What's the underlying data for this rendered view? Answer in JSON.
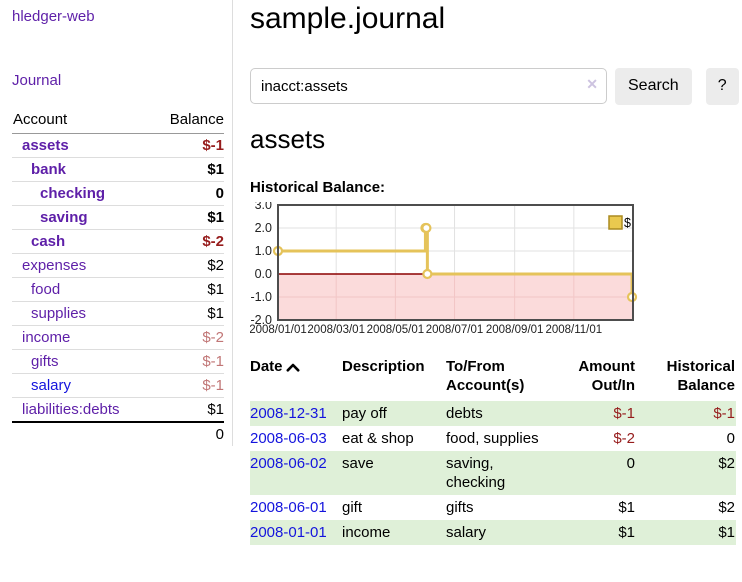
{
  "app": {
    "title": "hledger-web"
  },
  "sidebar": {
    "journal_label": "Journal",
    "accounts_table": {
      "account_header": "Account",
      "balance_header": "Balance",
      "rows": [
        {
          "name": "assets",
          "balance": "$-1",
          "level": 1,
          "emphasis": true,
          "name_style": "visited",
          "balance_style": "neg-strong"
        },
        {
          "name": "bank",
          "balance": "$1",
          "level": 2,
          "emphasis": true,
          "name_style": "visited",
          "balance_style": "normal"
        },
        {
          "name": "checking",
          "balance": "0",
          "level": 3,
          "emphasis": true,
          "name_style": "visited",
          "balance_style": "normal"
        },
        {
          "name": "saving",
          "balance": "$1",
          "level": 3,
          "emphasis": true,
          "name_style": "visited",
          "balance_style": "normal"
        },
        {
          "name": "cash",
          "balance": "$-2",
          "level": 2,
          "emphasis": true,
          "name_style": "visited",
          "balance_style": "neg-strong"
        },
        {
          "name": "expenses",
          "balance": "$2",
          "level": 1,
          "emphasis": false,
          "name_style": "visited",
          "balance_style": "normal"
        },
        {
          "name": "food",
          "balance": "$1",
          "level": 2,
          "emphasis": false,
          "name_style": "visited",
          "balance_style": "normal"
        },
        {
          "name": "supplies",
          "balance": "$1",
          "level": 2,
          "emphasis": false,
          "name_style": "visited",
          "balance_style": "normal"
        },
        {
          "name": "income",
          "balance": "$-2",
          "level": 1,
          "emphasis": false,
          "name_style": "visited",
          "balance_style": "neg-soft"
        },
        {
          "name": "gifts",
          "balance": "$-1",
          "level": 2,
          "emphasis": false,
          "name_style": "visited",
          "balance_style": "neg-soft"
        },
        {
          "name": "salary",
          "balance": "$-1",
          "level": 2,
          "emphasis": false,
          "name_style": "unvisited",
          "balance_style": "neg-soft"
        },
        {
          "name": "liabilities:debts",
          "balance": "$1",
          "level": 1,
          "emphasis": false,
          "name_style": "visited",
          "balance_style": "normal"
        }
      ],
      "total": "0"
    }
  },
  "main": {
    "title": "sample.journal",
    "search": {
      "value": "inacct:assets",
      "clear_icon": "✕",
      "button_label": "Search",
      "help_label": "?"
    },
    "account_heading": "assets",
    "chart_label": "Historical Balance:",
    "register_table": {
      "headers": {
        "date": "Date",
        "description": "Description",
        "accounts": "To/From Account(s)",
        "amount": "Amount Out/In",
        "balance": "Historical Balance"
      },
      "sort": {
        "column": "date",
        "direction": "ascending"
      },
      "rows": [
        {
          "date": "2008-12-31",
          "description": "pay off",
          "accounts": "debts",
          "amount": "$-1",
          "amount_style": "neg",
          "balance": "$-1",
          "balance_style": "neg",
          "highlighted": true
        },
        {
          "date": "2008-06-03",
          "description": "eat & shop",
          "accounts": "food, supplies",
          "amount": "$-2",
          "amount_style": "neg",
          "balance": "0",
          "balance_style": "normal",
          "highlighted": false
        },
        {
          "date": "2008-06-02",
          "description": "save",
          "accounts": "saving, checking",
          "amount": "0",
          "amount_style": "normal",
          "balance": "$2",
          "balance_style": "normal",
          "highlighted": true
        },
        {
          "date": "2008-06-01",
          "description": "gift",
          "accounts": "gifts",
          "amount": "$1",
          "amount_style": "normal",
          "balance": "$2",
          "balance_style": "normal",
          "highlighted": false
        },
        {
          "date": "2008-01-01",
          "description": "income",
          "accounts": "salary",
          "amount": "$1",
          "amount_style": "normal",
          "balance": "$1",
          "balance_style": "normal",
          "highlighted": true
        }
      ]
    }
  },
  "chart_data": {
    "type": "line",
    "title": "Historical Balance",
    "step": true,
    "series": [
      {
        "name": "$",
        "points": [
          [
            "2008-01-01",
            1
          ],
          [
            "2008-06-01",
            2
          ],
          [
            "2008-06-02",
            2
          ],
          [
            "2008-06-03",
            0
          ],
          [
            "2008-12-31",
            -1
          ]
        ]
      }
    ],
    "x_range": [
      "2008-01-01",
      "2009-01-01"
    ],
    "x_ticks": [
      "2008/01/01",
      "2008/03/01",
      "2008/05/01",
      "2008/07/01",
      "2008/09/01",
      "2008/11/01"
    ],
    "y_ticks": [
      3.0,
      2.0,
      1.0,
      0.0,
      -1.0,
      -2.0
    ],
    "ylim": [
      -2.0,
      3.0
    ],
    "grid": true,
    "legend_position": "top-right"
  },
  "colors": {
    "link-purple": "#5e1fa8",
    "link-blue": "#1414dd",
    "neg-strong": "#961c1c",
    "neg-soft": "#c17676",
    "row-green": "#dff0d8",
    "button-bg": "#ececec",
    "input-border": "#cccccc",
    "chart-line": "#e5c35a",
    "chart-marker-fill": "#ffffff",
    "chart-negative-fill": "#fbdbdb",
    "chart-zero-line": "#8b0000",
    "chart-border": "#4d4d4d",
    "chart-grid": "#e2e2e2",
    "chart-grid-negative": "#f2c6c6",
    "legend-fill": "#eac94f",
    "legend-border": "#ab8b20"
  }
}
